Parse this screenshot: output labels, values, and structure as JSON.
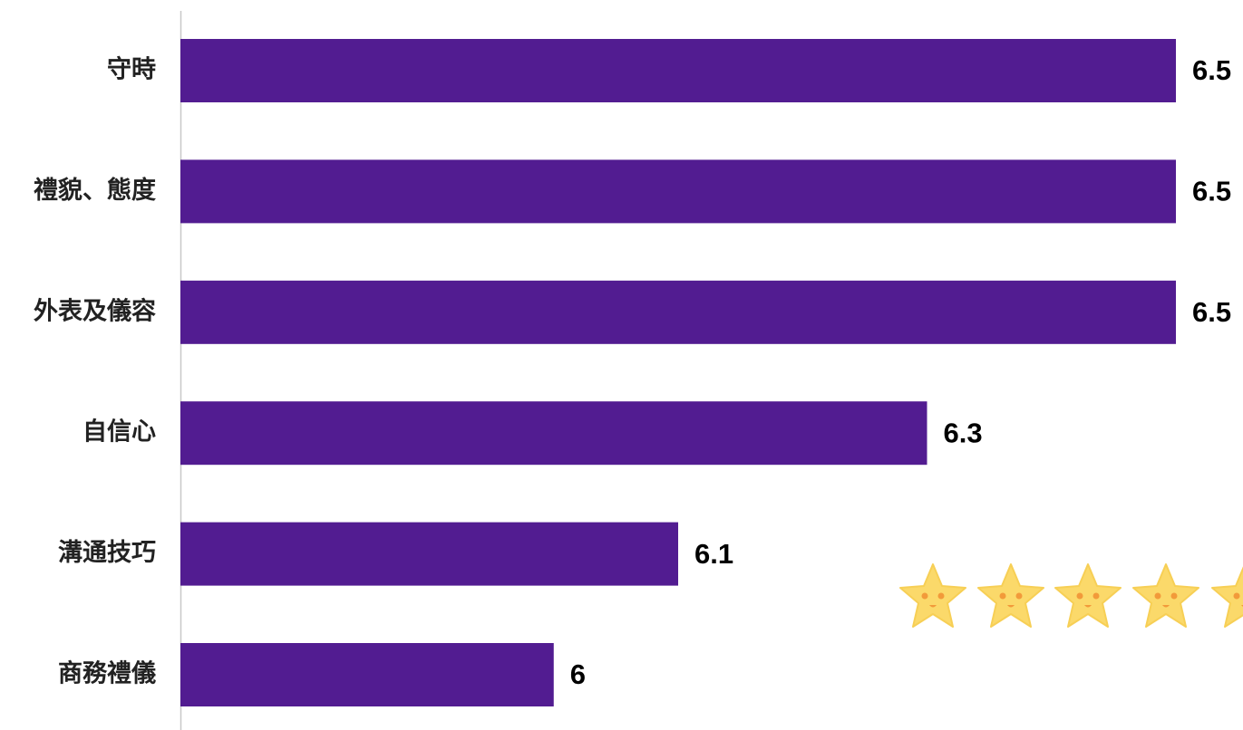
{
  "chart_data": {
    "type": "hbar",
    "categories": [
      "守時",
      "禮貌、態度",
      "外表及儀容",
      "自信心",
      "溝通技巧",
      "商務禮儀"
    ],
    "values": [
      6.5,
      6.5,
      6.5,
      6.3,
      6.1,
      6
    ],
    "color": "#521c91",
    "xlim": [
      5.7,
      6.5
    ]
  }
}
